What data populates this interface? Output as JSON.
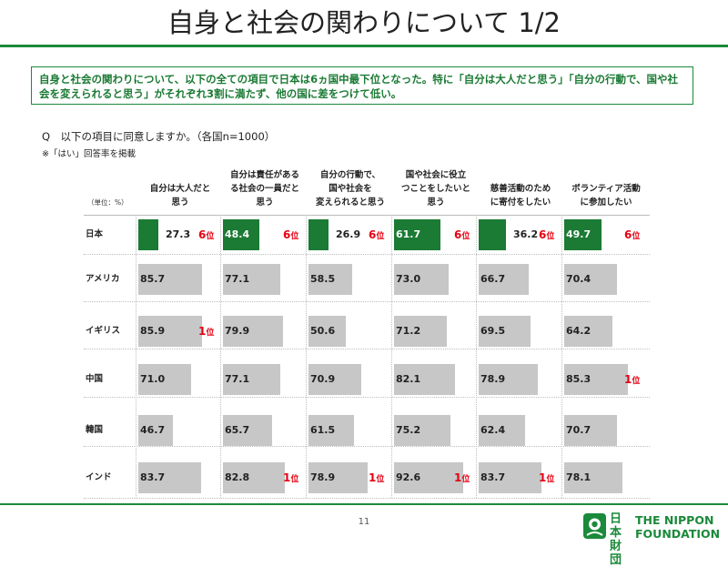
{
  "page": {
    "title": "自身と社会の関わりについて 1/2",
    "summary": "自身と社会の関わりについて、以下の全ての項目で日本は6ヵ国中最下位となった。特に「自分は大人だと思う」「自分の行動で、国や社会を変えられると思う」がそれぞれ3割に満たず、他の国に差をつけて低い。",
    "question": "Q　以下の項目に同意しますか。（各国n=1000）",
    "note": "※「はい」回答率を掲載",
    "unit": "（単位：%）",
    "page_number": "11",
    "logo_jp": "日本財団",
    "logo_en_line1": "THE NIPPON",
    "logo_en_line2": "FOUNDATION"
  },
  "colors": {
    "japan_bar": "#1b7a34",
    "other_bar": "#c7c7c7",
    "rank": "#e60012",
    "accent": "#1b8a3a"
  },
  "chart_data": {
    "type": "table",
    "columns": [
      "自分は大人だと思う",
      "自分は責任がある社会の一員だと思う",
      "自分の行動で、国や社会を変えられると思う",
      "国や社会に役立つことをしたいと思う",
      "慈善活動のために寄付をしたい",
      "ボランティア活動に参加したい"
    ],
    "column_display_lines": [
      [
        "自分は大人だと",
        "思う"
      ],
      [
        "自分は責任がある",
        "る社会の一員だと",
        "思う"
      ],
      [
        "自分の行動で、",
        "国や社会を",
        "変えられると思う"
      ],
      [
        "国や社会に役立",
        "つことをしたいと",
        "思う"
      ],
      [
        "慈善活動のため",
        "に寄付をしたい"
      ],
      [
        "ボランティア活動",
        "に参加したい"
      ]
    ],
    "rows": [
      {
        "country": "日本",
        "values": [
          27.3,
          48.4,
          26.9,
          61.7,
          36.2,
          49.7
        ],
        "ranks": [
          "6位",
          "6位",
          "6位",
          "6位",
          "6位",
          "6位"
        ]
      },
      {
        "country": "アメリカ",
        "values": [
          85.7,
          77.1,
          58.5,
          73.0,
          66.7,
          70.4
        ],
        "ranks": [
          "",
          "",
          "",
          "",
          "",
          ""
        ]
      },
      {
        "country": "イギリス",
        "values": [
          85.9,
          79.9,
          50.6,
          71.2,
          69.5,
          64.2
        ],
        "ranks": [
          "1位",
          "",
          "",
          "",
          "",
          ""
        ]
      },
      {
        "country": "中国",
        "values": [
          71.0,
          77.1,
          70.9,
          82.1,
          78.9,
          85.3
        ],
        "ranks": [
          "",
          "",
          "",
          "",
          "",
          "1位"
        ]
      },
      {
        "country": "韓国",
        "values": [
          46.7,
          65.7,
          61.5,
          75.2,
          62.4,
          70.7
        ],
        "ranks": [
          "",
          "",
          "",
          "",
          "",
          ""
        ]
      },
      {
        "country": "インド",
        "values": [
          83.7,
          82.8,
          78.9,
          92.6,
          83.7,
          78.1
        ],
        "ranks": [
          "",
          "1位",
          "1位",
          "1位",
          "1位",
          ""
        ]
      }
    ],
    "value_range": [
      0,
      100
    ]
  }
}
